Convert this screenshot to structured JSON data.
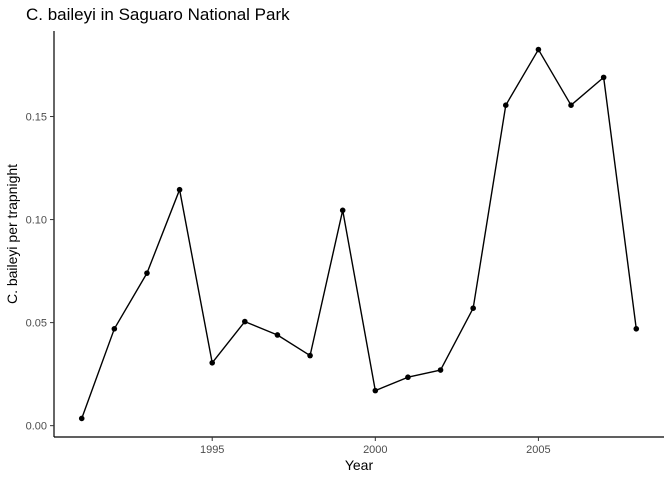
{
  "chart_data": {
    "type": "line",
    "title": "C. baileyi in Saguaro National Park",
    "xlabel": "Year",
    "ylabel": "C. baileyi per trapnight",
    "x": [
      1991,
      1992,
      1993,
      1994,
      1995,
      1996,
      1997,
      1998,
      1999,
      2000,
      2001,
      2002,
      2003,
      2004,
      2005,
      2006,
      2007,
      2008
    ],
    "series": [
      {
        "values": [
          0.0035,
          0.047,
          0.074,
          0.1145,
          0.0305,
          0.0505,
          0.044,
          0.034,
          0.1045,
          0.017,
          0.0235,
          0.027,
          0.057,
          0.1555,
          0.1825,
          0.1555,
          0.169,
          0.047
        ]
      }
    ],
    "xlim": [
      1990.15,
      2008.85
    ],
    "ylim": [
      -0.0055,
      0.1915
    ],
    "x_ticks": [
      1995,
      2000,
      2005
    ],
    "x_tick_labels": [
      "1995",
      "2000",
      "2005"
    ],
    "y_ticks": [
      0,
      0.05,
      0.1,
      0.15
    ],
    "y_tick_labels": [
      "0.00",
      "0.05",
      "0.10",
      "0.15"
    ],
    "grid": false,
    "legend": "none",
    "line_color": "#000000",
    "point_color": "#000000"
  }
}
